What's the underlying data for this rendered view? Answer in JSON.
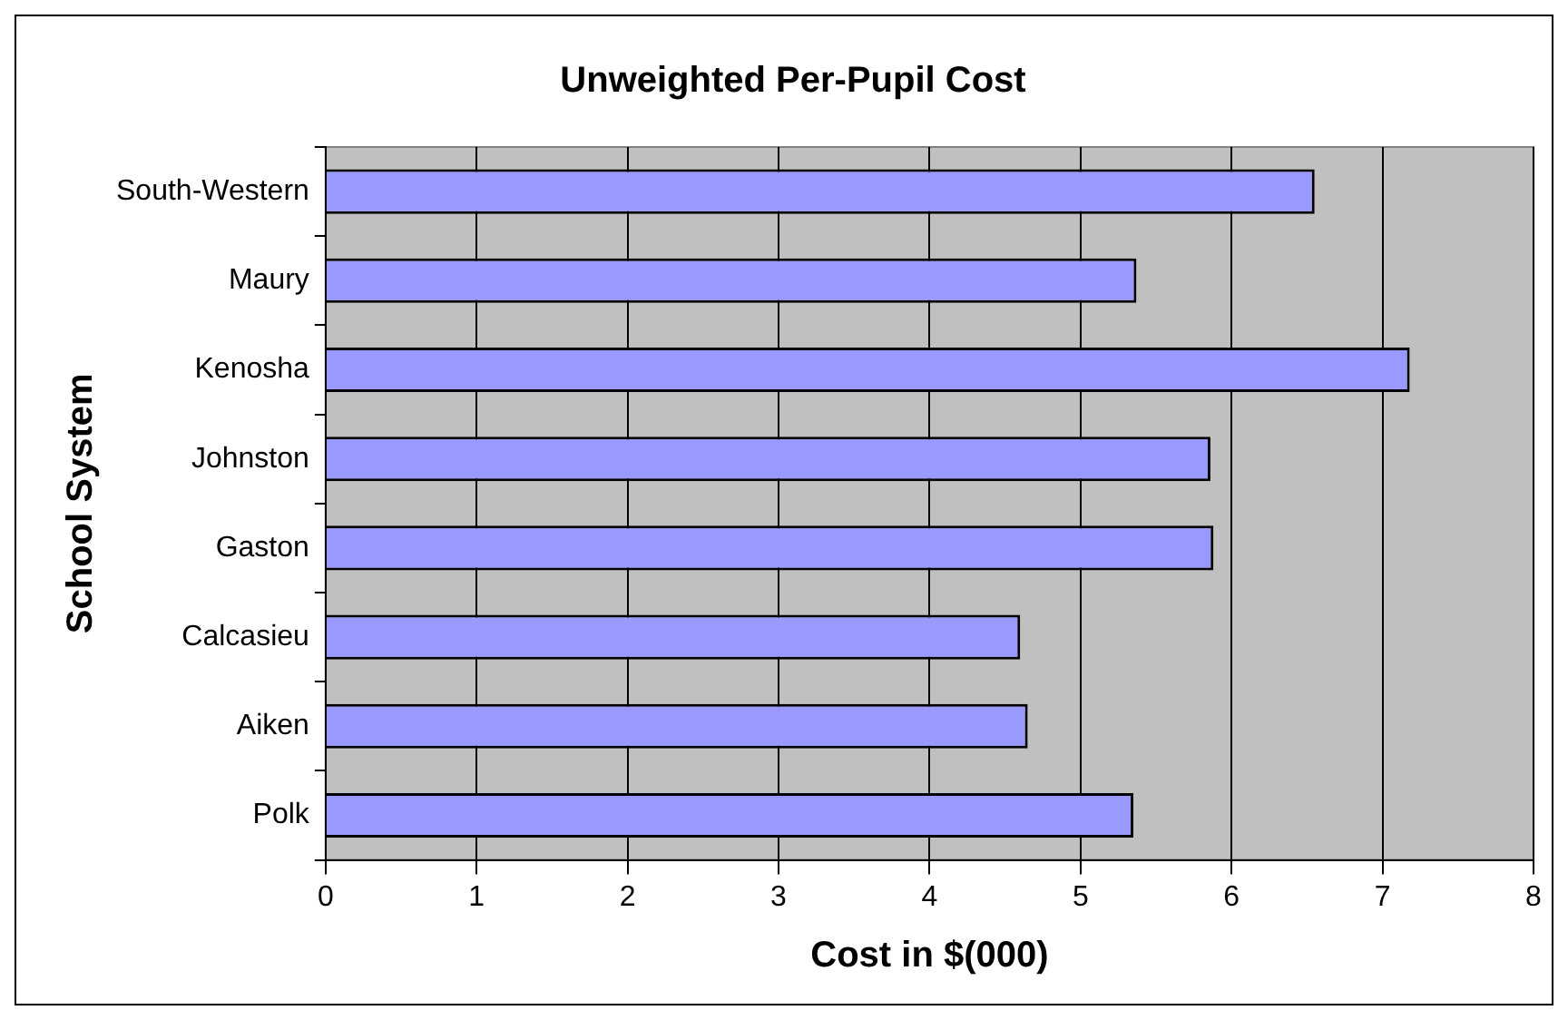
{
  "chart_data": {
    "type": "bar",
    "orientation": "horizontal",
    "title": "Unweighted Per-Pupil Cost",
    "xlabel": "Cost in $(000)",
    "ylabel": "School System",
    "categories": [
      "South-Western",
      "Maury",
      "Kenosha",
      "Johnston",
      "Gaston",
      "Calcasieu",
      "Aiken",
      "Polk"
    ],
    "values": [
      6.55,
      5.37,
      7.18,
      5.86,
      5.88,
      4.6,
      4.65,
      5.35
    ],
    "color": "#9999ff",
    "xlim": [
      0,
      8
    ],
    "xticks": [
      0,
      1,
      2,
      3,
      4,
      5,
      6,
      7,
      8
    ],
    "grid": "x",
    "legend": false
  }
}
